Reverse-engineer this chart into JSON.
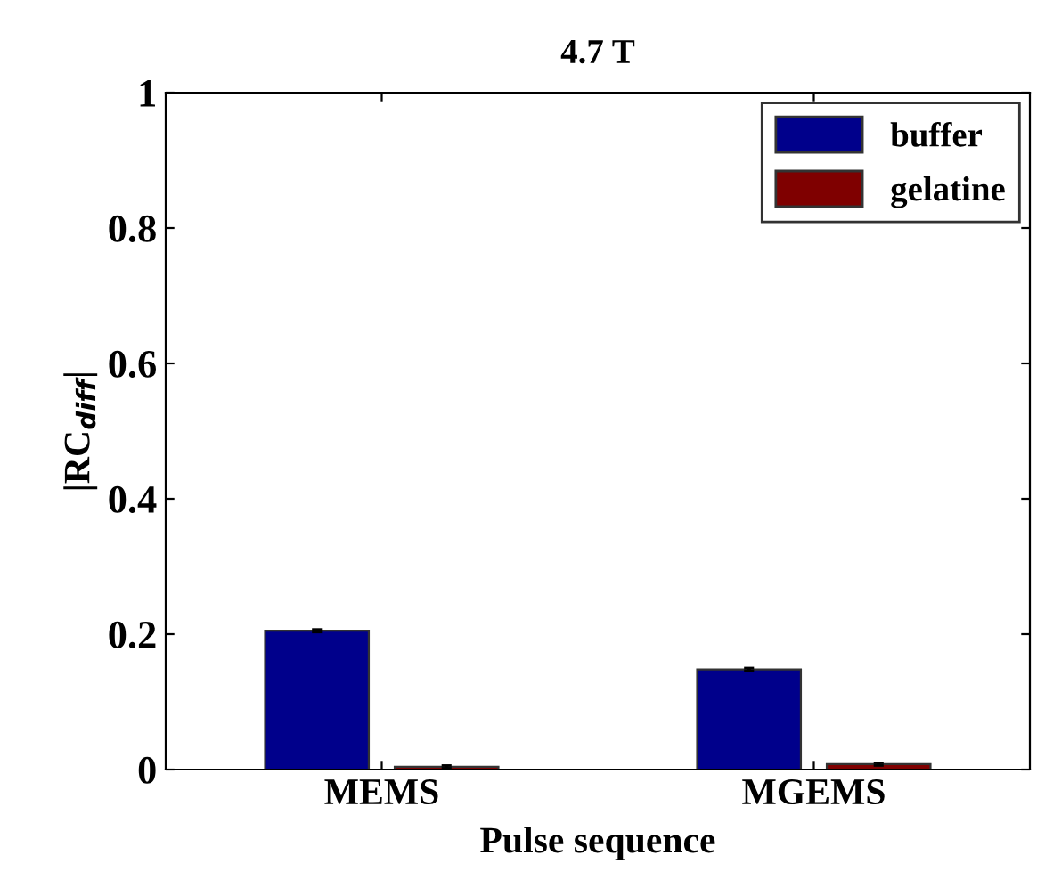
{
  "chart_data": {
    "type": "bar",
    "title": "4.7 T",
    "xlabel": "Pulse sequence",
    "ylabel": "|RC$_{diff}$|",
    "categories": [
      "MEMS",
      "MGEMS"
    ],
    "series": [
      {
        "name": "buffer",
        "color": "#00008b",
        "values": [
          0.205,
          0.148
        ],
        "errors": [
          0.002,
          0.002
        ]
      },
      {
        "name": "gelatine",
        "color": "#7f0000",
        "values": [
          0.004,
          0.008
        ],
        "errors": [
          0.002,
          0.002
        ]
      }
    ],
    "ylim": [
      0,
      1
    ],
    "yticks": [
      0,
      0.2,
      0.4,
      0.6,
      0.8,
      1
    ],
    "legend": "top right",
    "grid": false
  }
}
